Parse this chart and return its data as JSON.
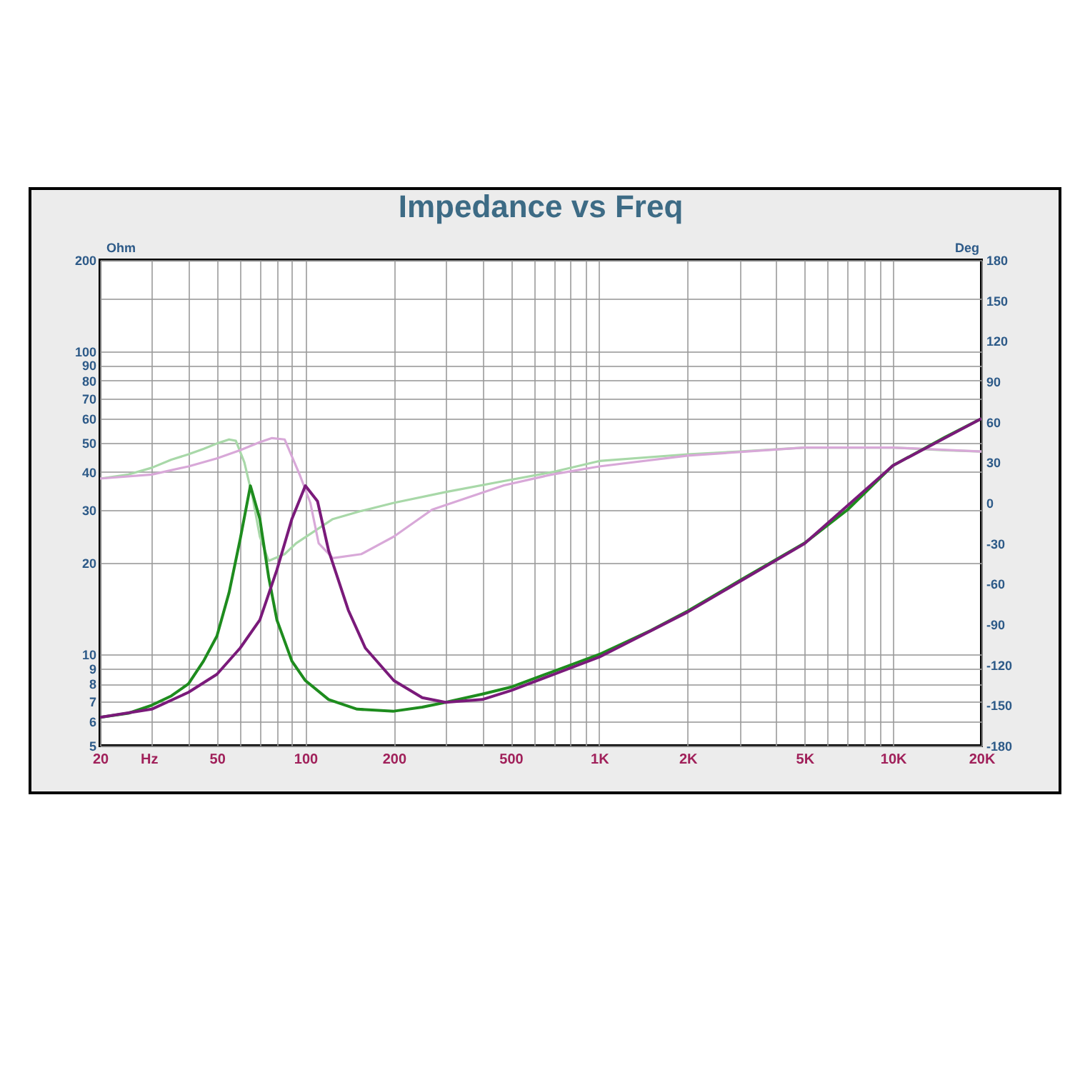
{
  "chart_data": {
    "type": "line",
    "title": "Impedance vs Freq",
    "xlabel": "Hz",
    "ylabel": "Ohm",
    "y2label": "Deg",
    "log": "xy",
    "grid": true,
    "legend": false,
    "marker": "none",
    "line_style": "solid",
    "xlim": [
      20,
      20000
    ],
    "ylim": [
      5,
      200
    ],
    "y2lim": [
      -180,
      180
    ],
    "xticks": [
      20,
      {
        "value": 30,
        "label": null
      },
      {
        "value": 40,
        "label": null
      },
      50,
      {
        "value": 60,
        "label": null
      },
      {
        "value": 70,
        "label": null
      },
      {
        "value": 80,
        "label": null
      },
      {
        "value": 90,
        "label": null
      },
      100,
      200,
      {
        "value": 300,
        "label": null
      },
      {
        "value": 400,
        "label": null
      },
      500,
      {
        "value": 600,
        "label": null
      },
      {
        "value": 700,
        "label": null
      },
      {
        "value": 800,
        "label": null
      },
      {
        "value": 900,
        "label": null
      },
      {
        "value": 1000,
        "label": "1K"
      },
      {
        "value": 2000,
        "label": "2K"
      },
      {
        "value": 3000,
        "label": null
      },
      {
        "value": 4000,
        "label": null
      },
      {
        "value": 5000,
        "label": "5K"
      },
      {
        "value": 6000,
        "label": null
      },
      {
        "value": 7000,
        "label": null
      },
      {
        "value": 8000,
        "label": null
      },
      {
        "value": 9000,
        "label": null
      },
      {
        "value": 10000,
        "label": "10K"
      },
      {
        "value": 20000,
        "label": "20K"
      }
    ],
    "yticks": [
      5,
      6,
      7,
      8,
      9,
      10,
      20,
      30,
      40,
      50,
      60,
      70,
      80,
      90,
      100,
      {
        "value": 150,
        "label": null
      },
      200
    ],
    "y2ticks": [
      -180,
      -150,
      -120,
      -90,
      -60,
      -30,
      0,
      30,
      60,
      90,
      120,
      150,
      180
    ],
    "series": [
      {
        "color": "#1e8c1e",
        "x": [
          20,
          25,
          30,
          35,
          40,
          45,
          50,
          55,
          60,
          65,
          70,
          75,
          80,
          90,
          100,
          120,
          150,
          200,
          250,
          300,
          400,
          500,
          700,
          1000,
          1500,
          2000,
          3000,
          5000,
          7000,
          10000,
          15000,
          20000
        ],
        "values": [
          6.2,
          6.4,
          6.8,
          7.3,
          8.0,
          9.5,
          11.5,
          16,
          24,
          36,
          28,
          18,
          13,
          9.5,
          8.2,
          7.1,
          6.6,
          6.5,
          6.7,
          6.95,
          7.4,
          7.8,
          8.8,
          10,
          12,
          13.9,
          17.5,
          23.3,
          30,
          42,
          52,
          60
        ]
      },
      {
        "color": "#7a1a7a",
        "x": [
          20,
          30,
          40,
          50,
          60,
          70,
          80,
          90,
          100,
          110,
          120,
          140,
          160,
          200,
          250,
          300,
          400,
          500,
          700,
          1000,
          2000,
          5000,
          10000,
          20000
        ],
        "values": [
          6.2,
          6.6,
          7.5,
          8.6,
          10.5,
          13,
          19,
          28,
          36,
          32,
          22,
          14,
          10.5,
          8.2,
          7.2,
          6.95,
          7.1,
          7.6,
          8.6,
          9.8,
          13.8,
          23.2,
          42,
          60
        ]
      },
      {
        "color": "#a8d8a8",
        "axis": "y2",
        "x": [
          20,
          25,
          30,
          35,
          40,
          45,
          50,
          55,
          58,
          62,
          66,
          70,
          75,
          85,
          93,
          124,
          155,
          200,
          300,
          470,
          700,
          1000,
          2000,
          3000,
          5000,
          10000,
          15000,
          20000
        ],
        "values": [
          18,
          21,
          26,
          32,
          36,
          40,
          44,
          47,
          46,
          30,
          5,
          -25,
          -43,
          -38,
          -30,
          -12,
          -6,
          0,
          8,
          16,
          23,
          31,
          36,
          38,
          41,
          41,
          39,
          38
        ]
      },
      {
        "color": "#d8a8d8",
        "axis": "y2",
        "x": [
          20,
          30,
          40,
          50,
          60,
          70,
          77,
          85,
          96,
          104,
          111,
          124,
          155,
          200,
          270,
          474,
          690,
          1000,
          2000,
          5000,
          10000,
          20000
        ],
        "values": [
          18,
          21,
          27,
          33,
          39,
          45,
          48,
          47,
          20,
          0,
          -30,
          -41,
          -38,
          -25,
          -5,
          13,
          21,
          27,
          35,
          41,
          41,
          38
        ]
      }
    ]
  }
}
